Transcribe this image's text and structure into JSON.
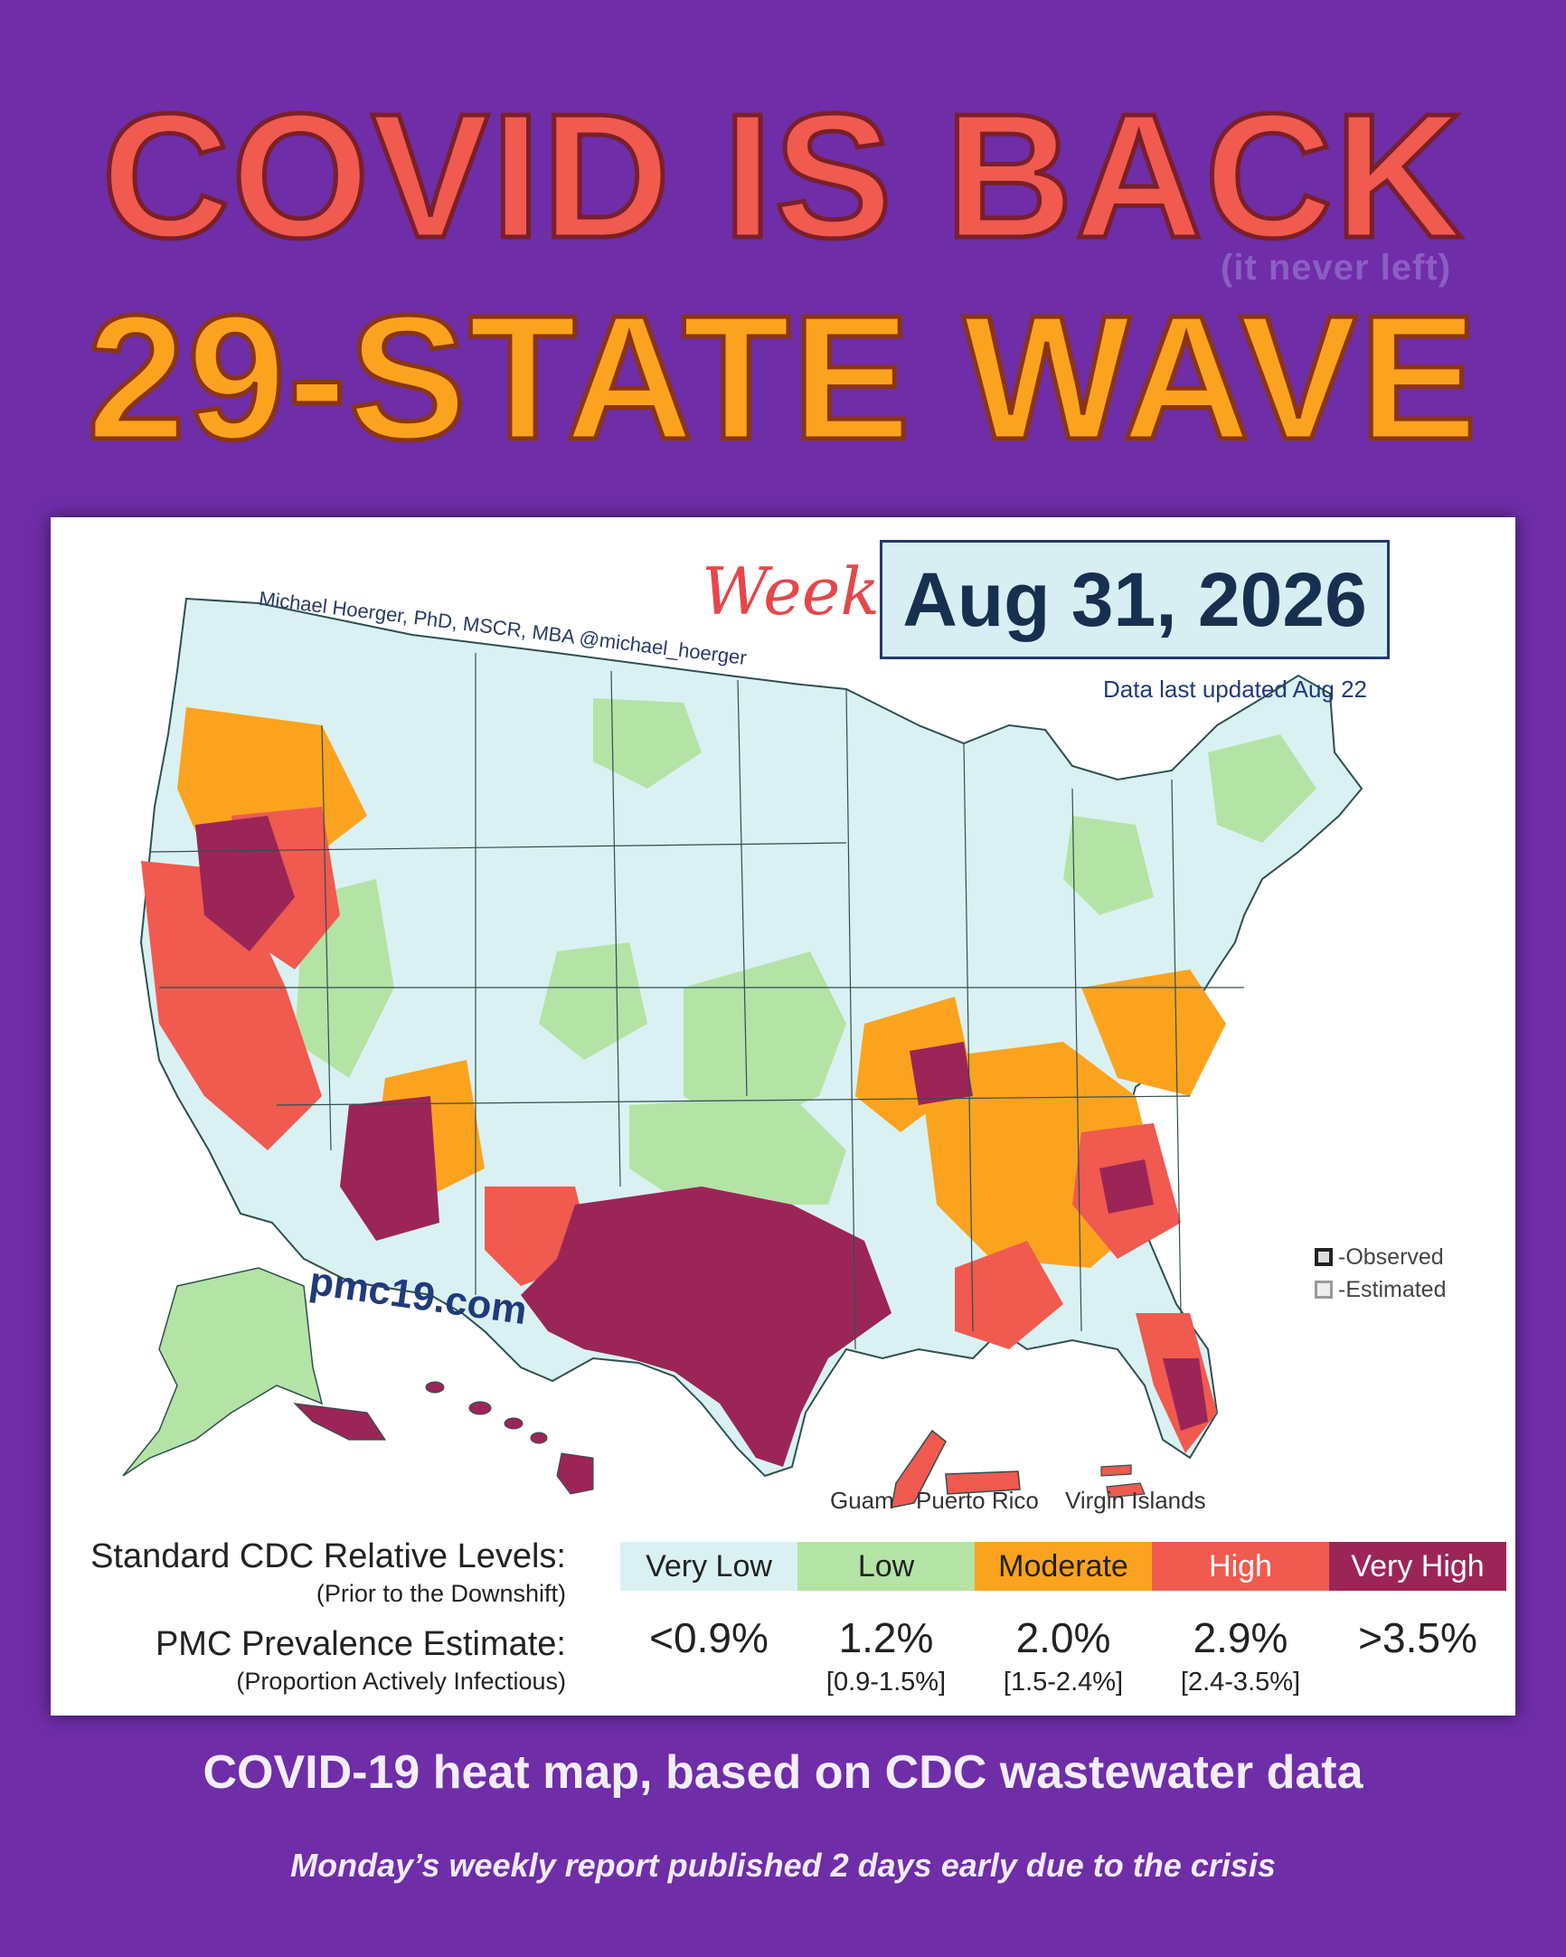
{
  "headline": {
    "line1": "COVID IS BACK",
    "subnote": "(it never left)",
    "line2": "29-STATE WAVE"
  },
  "map": {
    "week_label": "Week of",
    "date": "Aug 31, 2026",
    "updated": "Data last updated Aug 22",
    "author": "Michael Hoerger, PhD, MSCR, MBA  @michael_hoerger",
    "site": "pmc19.com",
    "territories": [
      "Guam",
      "Puerto Rico",
      "Virgin Islands"
    ],
    "marker_legend": {
      "observed": "-Observed",
      "estimated": "-Estimated"
    },
    "colors": {
      "very_low": "#daf1f3",
      "low": "#b4e3a6",
      "moderate": "#fba31e",
      "high": "#f05a4f",
      "very_high": "#9c2557"
    }
  },
  "legend": {
    "row1_label": "Standard CDC Relative Levels:",
    "row1_sub": "(Prior to the Downshift)",
    "row2_label": "PMC Prevalence Estimate:",
    "row2_sub": "(Proportion Actively Infectious)",
    "levels": [
      {
        "name": "Very Low",
        "value": "<0.9%",
        "range": "",
        "color": "#daf1f3",
        "text": "#222222"
      },
      {
        "name": "Low",
        "value": "1.2%",
        "range": "[0.9-1.5%]",
        "color": "#b4e3a6",
        "text": "#222222"
      },
      {
        "name": "Moderate",
        "value": "2.0%",
        "range": "[1.5-2.4%]",
        "color": "#fba31e",
        "text": "#222222"
      },
      {
        "name": "High",
        "value": "2.9%",
        "range": "[2.4-3.5%]",
        "color": "#f05a4f",
        "text": "#ffffff"
      },
      {
        "name": "Very High",
        "value": ">3.5%",
        "range": "",
        "color": "#9c2557",
        "text": "#ffffff"
      }
    ]
  },
  "caption": "COVID-19 heat map, based on CDC wastewater data",
  "note": "Monday’s weekly report published 2 days early due to the crisis"
}
